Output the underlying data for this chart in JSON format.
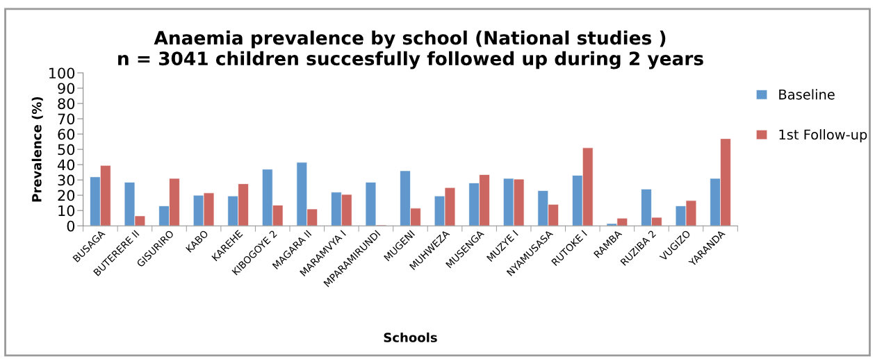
{
  "chart_data": {
    "type": "bar",
    "title": "Anaemia prevalence by school (National studies )\nn = 3041 children succesfully followed up during 2 years",
    "xlabel": "Schools",
    "ylabel": "Prevalence (%)",
    "categories": [
      "BUSAGA",
      "BUTERERE II",
      "GISURIRO",
      "KABO",
      "KAREHE",
      "KIBOGOYE 2",
      "MAGARA II",
      "MARAMVYA I",
      "MPARAMIRUNDI",
      "MUGENI",
      "MUHWEZA",
      "MUSENGA",
      "MUZYE I",
      "NYAMUSASA",
      "RUTOKE I",
      "RAMBA",
      "RUZIBA 2",
      "VUGIZO",
      "YARANDA"
    ],
    "series": [
      {
        "name": "Baseline",
        "color": "#6097cc",
        "values": [
          32,
          28.5,
          13,
          20,
          19.5,
          37,
          41.5,
          22,
          28.5,
          36,
          19.5,
          28,
          31,
          23,
          33,
          1.5,
          24,
          13,
          31
        ]
      },
      {
        "name": "1st Follow-up",
        "color": "#cc6660",
        "values": [
          39.5,
          6.5,
          31,
          21.5,
          27.5,
          13.5,
          11,
          20.5,
          0.5,
          11.5,
          25,
          33.5,
          30.5,
          14,
          51,
          5,
          5.5,
          16.5,
          57
        ]
      }
    ],
    "ylim": [
      0,
      100
    ],
    "yticks": [
      0,
      10,
      20,
      30,
      40,
      50,
      60,
      70,
      80,
      90,
      100
    ],
    "grid": false,
    "legend": "right"
  }
}
